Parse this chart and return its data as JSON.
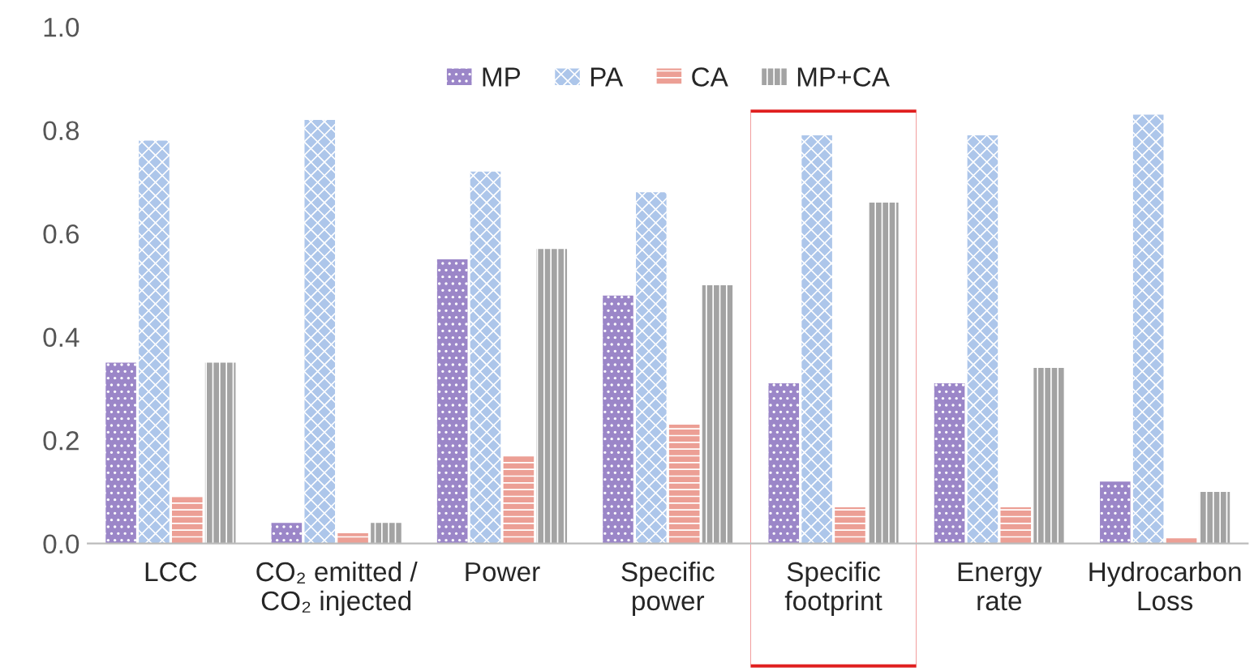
{
  "chart_data": {
    "type": "bar",
    "categories": [
      "LCC",
      "CO₂ emitted /\nCO₂ injected",
      "Power",
      "Specific\npower",
      "Specific\nfootprint",
      "Energy\nrate",
      "Hydrocarbon\nLoss"
    ],
    "series": [
      {
        "name": "MP",
        "color": "#9b86c8",
        "values": [
          0.35,
          0.04,
          0.55,
          0.48,
          0.31,
          0.31,
          0.12
        ]
      },
      {
        "name": "PA",
        "color": "#adc6ea",
        "values": [
          0.78,
          0.82,
          0.72,
          0.68,
          0.79,
          0.79,
          0.83
        ]
      },
      {
        "name": "CA",
        "color": "#ec9f95",
        "values": [
          0.09,
          0.02,
          0.17,
          0.23,
          0.07,
          0.07,
          0.01
        ]
      },
      {
        "name": "MP+CA",
        "color": "#a3a3a3",
        "values": [
          0.35,
          0.04,
          0.57,
          0.5,
          0.66,
          0.34,
          0.1
        ]
      }
    ],
    "ylim": [
      0,
      1.0
    ],
    "yticks": [
      {
        "value": 0,
        "label": "0.0"
      },
      {
        "value": 0.2,
        "label": "0.2"
      },
      {
        "value": 0.4,
        "label": "0.4"
      },
      {
        "value": 0.6,
        "label": "0.6"
      },
      {
        "value": 0.8,
        "label": "0.8"
      },
      {
        "value": 1.0,
        "label": "1.0"
      }
    ],
    "grid": false,
    "legend": "top"
  }
}
